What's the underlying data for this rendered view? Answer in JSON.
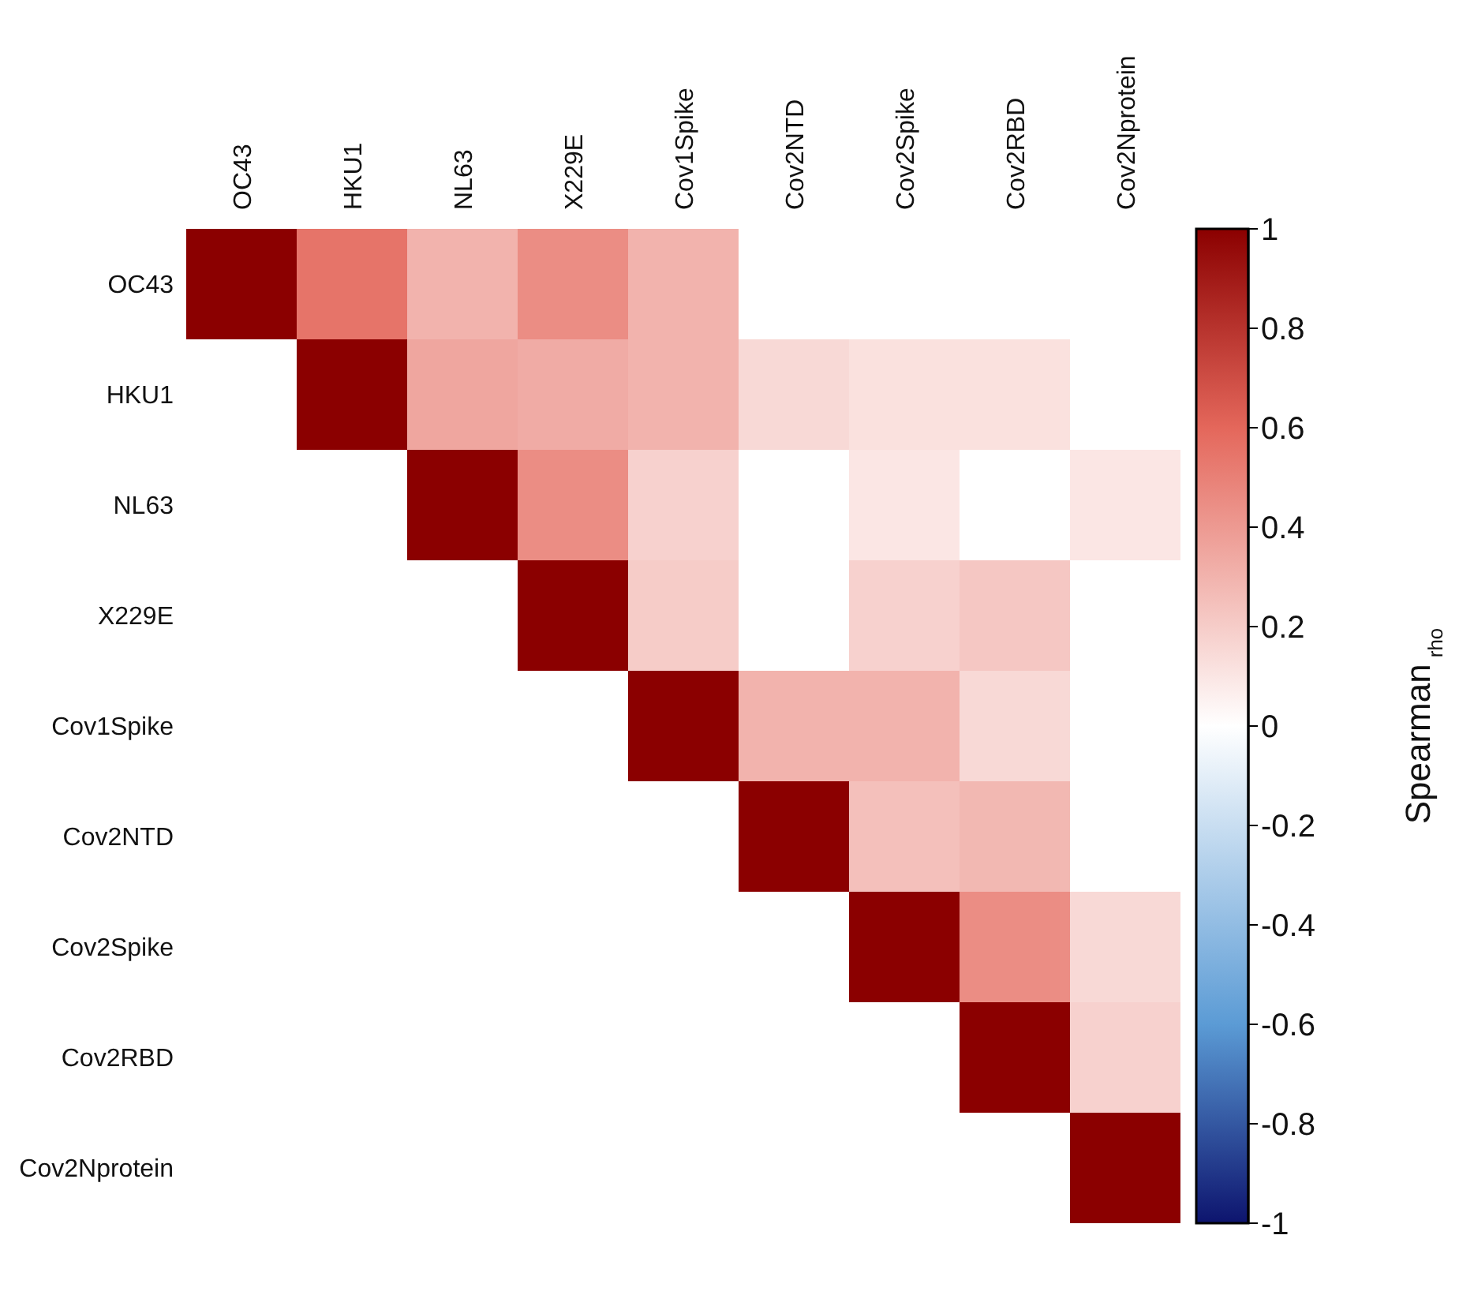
{
  "chart_data": {
    "type": "heatmap",
    "categories": [
      "OC43",
      "HKU1",
      "NL63",
      "X229E",
      "Cov1Spike",
      "Cov2NTD",
      "Cov2Spike",
      "Cov2RBD",
      "Cov2Nprotein"
    ],
    "y_categories": [
      "OC43",
      "HKU1",
      "NL63",
      "X229E",
      "Cov1Spike",
      "Cov2NTD",
      "Cov2Spike",
      "Cov2RBD",
      "Cov2Nprotein"
    ],
    "cells": [
      [
        1,
        0.55,
        0.3,
        0.45,
        0.3,
        null,
        null,
        null,
        null
      ],
      [
        null,
        1,
        0.35,
        0.33,
        0.3,
        0.15,
        0.12,
        0.12,
        null
      ],
      [
        null,
        null,
        1,
        0.45,
        0.18,
        null,
        0.1,
        null,
        0.1
      ],
      [
        null,
        null,
        null,
        1,
        0.2,
        null,
        0.18,
        0.22,
        null
      ],
      [
        null,
        null,
        null,
        null,
        1,
        0.3,
        0.3,
        0.15,
        null
      ],
      [
        null,
        null,
        null,
        null,
        null,
        1,
        0.25,
        0.28,
        null
      ],
      [
        null,
        null,
        null,
        null,
        null,
        null,
        1,
        0.45,
        0.15
      ],
      [
        null,
        null,
        null,
        null,
        null,
        null,
        null,
        1,
        0.18
      ],
      [
        null,
        null,
        null,
        null,
        null,
        null,
        null,
        null,
        1
      ]
    ],
    "clim": [
      -1,
      1
    ],
    "cticks": [
      -1,
      -0.8,
      -0.6,
      -0.4,
      -0.2,
      0,
      0.2,
      0.4,
      0.6,
      0.8,
      1
    ],
    "clabel": "Spearman$_{rho}$"
  }
}
